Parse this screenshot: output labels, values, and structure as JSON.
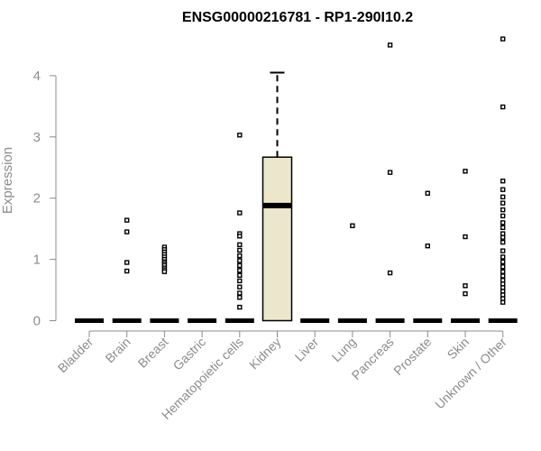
{
  "chart_data": {
    "type": "boxplot",
    "title": "ENSG00000216781 - RP1-290I10.2",
    "xlabel": "",
    "ylabel": "Expression",
    "ylim": [
      0,
      4.6
    ],
    "yticks": [
      0,
      1,
      2,
      3,
      4
    ],
    "grid": false,
    "categories": [
      "Bladder",
      "Brain",
      "Breast",
      "Gastric",
      "Hematopoietic cells",
      "Kidney",
      "Liver",
      "Lung",
      "Pancreas",
      "Prostate",
      "Skin",
      "Unknown / Other"
    ],
    "boxes": [
      {
        "category": "Bladder",
        "min": 0,
        "q1": 0,
        "median": 0,
        "q3": 0,
        "max": 0,
        "outliers": []
      },
      {
        "category": "Brain",
        "min": 0,
        "q1": 0,
        "median": 0,
        "q3": 0,
        "max": 0,
        "outliers": [
          1.64,
          1.45,
          0.95,
          0.81
        ]
      },
      {
        "category": "Breast",
        "min": 0,
        "q1": 0,
        "median": 0,
        "q3": 0,
        "max": 0,
        "outliers": [
          1.2,
          1.16,
          1.12,
          1.08,
          1.04,
          1.0,
          0.96,
          0.93,
          0.9,
          0.86,
          0.83,
          0.8
        ]
      },
      {
        "category": "Gastric",
        "min": 0,
        "q1": 0,
        "median": 0,
        "q3": 0,
        "max": 0,
        "outliers": []
      },
      {
        "category": "Hematopoietic cells",
        "min": 0,
        "q1": 0,
        "median": 0,
        "q3": 0,
        "max": 0,
        "outliers": [
          3.03,
          1.76,
          1.42,
          1.38,
          1.24,
          1.15,
          1.06,
          0.98,
          0.9,
          0.82,
          0.74,
          0.65,
          0.55,
          0.45,
          0.38,
          0.22
        ]
      },
      {
        "category": "Kidney",
        "min": 0,
        "q1": 0,
        "median": 1.88,
        "q3": 2.67,
        "max": 4.05,
        "outliers": []
      },
      {
        "category": "Liver",
        "min": 0,
        "q1": 0,
        "median": 0,
        "q3": 0,
        "max": 0,
        "outliers": []
      },
      {
        "category": "Lung",
        "min": 0,
        "q1": 0,
        "median": 0,
        "q3": 0,
        "max": 0,
        "outliers": [
          1.55
        ]
      },
      {
        "category": "Pancreas",
        "min": 0,
        "q1": 0,
        "median": 0,
        "q3": 0,
        "max": 0,
        "outliers": [
          4.5,
          2.42,
          0.78
        ]
      },
      {
        "category": "Prostate",
        "min": 0,
        "q1": 0,
        "median": 0,
        "q3": 0,
        "max": 0,
        "outliers": [
          2.08,
          1.22
        ]
      },
      {
        "category": "Skin",
        "min": 0,
        "q1": 0,
        "median": 0,
        "q3": 0,
        "max": 0,
        "outliers": [
          2.44,
          1.37,
          0.57,
          0.44
        ]
      },
      {
        "category": "Unknown / Other",
        "min": 0,
        "q1": 0,
        "median": 0,
        "q3": 0,
        "max": 0,
        "outliers": [
          4.6,
          3.49,
          2.28,
          2.14,
          2.02,
          1.92,
          1.81,
          1.71,
          1.6,
          1.52,
          1.42,
          1.36,
          1.28,
          1.14,
          1.04,
          0.96,
          0.88,
          0.8,
          0.73,
          0.66,
          0.6,
          0.54,
          0.48,
          0.42,
          0.36,
          0.3
        ]
      }
    ],
    "colors": {
      "box_fill": "#ece6cc",
      "box_stroke": "#000000",
      "axis": "#8c8c8c",
      "median": "#000000",
      "outlier": "#000000"
    }
  }
}
